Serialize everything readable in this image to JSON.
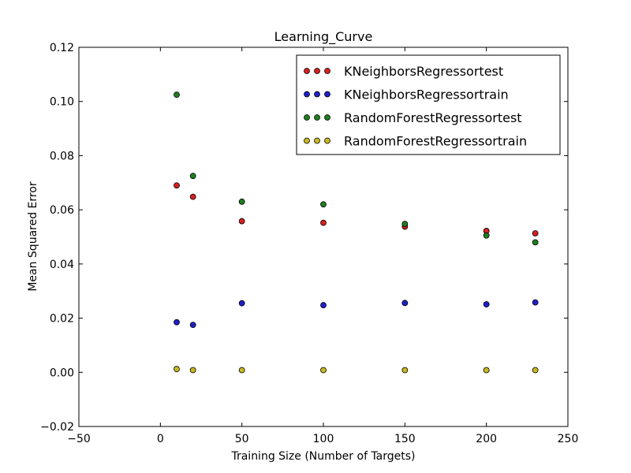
{
  "chart_data": {
    "type": "scatter",
    "title": "Learning_Curve",
    "xlabel": "Training Size (Number of Targets)",
    "ylabel": "Mean Squared Error",
    "xlim": [
      -50,
      250
    ],
    "ylim": [
      -0.02,
      0.12
    ],
    "xticks": [
      -50,
      0,
      50,
      100,
      150,
      200,
      250
    ],
    "xtick_labels": [
      "−50",
      "0",
      "50",
      "100",
      "150",
      "200",
      "250"
    ],
    "yticks": [
      -0.02,
      0.0,
      0.02,
      0.04,
      0.06,
      0.08,
      0.1,
      0.12
    ],
    "ytick_labels": [
      "−0.02",
      "0.00",
      "0.02",
      "0.04",
      "0.06",
      "0.08",
      "0.10",
      "0.12"
    ],
    "x": [
      10,
      20,
      50,
      100,
      150,
      200,
      230
    ],
    "legend_location": "top-right",
    "series": [
      {
        "name": "KNeighborsRegressortest",
        "color": "#d62020",
        "values": [
          0.069,
          0.0648,
          0.0558,
          0.0552,
          0.0538,
          0.0522,
          0.0513
        ]
      },
      {
        "name": "KNeighborsRegressortrain",
        "color": "#1f1fcc",
        "values": [
          0.0185,
          0.0175,
          0.0255,
          0.0248,
          0.0256,
          0.0251,
          0.0258
        ]
      },
      {
        "name": "RandomForestRegressortest",
        "color": "#1f7f1f",
        "values": [
          0.1025,
          0.0725,
          0.063,
          0.062,
          0.0548,
          0.0505,
          0.048
        ]
      },
      {
        "name": "RandomForestRegressortrain",
        "color": "#c8b820",
        "values": [
          0.0012,
          0.0008,
          0.0008,
          0.0008,
          0.0008,
          0.0008,
          0.0008
        ]
      }
    ]
  }
}
